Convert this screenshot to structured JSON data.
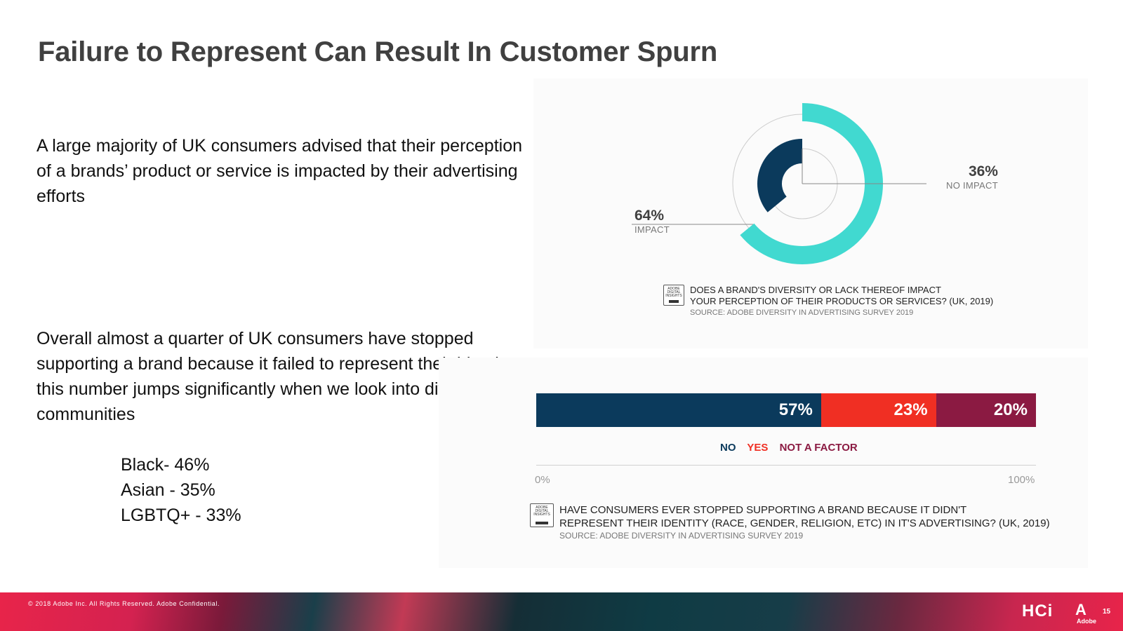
{
  "slide": {
    "title": "Failure to Represent Can Result In Customer Spurn",
    "paragraph1": "A large majority of UK consumers advised that their perception of a brands’ product or service is impacted by their advertising efforts",
    "paragraph2": "Overall almost a quarter of UK consumers have stopped supporting a brand because it failed to represent their identity, this number jumps significantly when we look into different communities",
    "community_stats": [
      "Black- 46%",
      "Asian - 35%",
      "LGBTQ+ - 33%"
    ]
  },
  "donut_source": {
    "badge": [
      "ADOBE",
      "DIGITAL",
      "INSIGHTS",
      "2019"
    ],
    "question_lines": [
      "DOES A BRAND'S DIVERSITY OR LACK THEREOF IMPACT",
      "YOUR PERCEPTION OF THEIR PRODUCTS OR SERVICES? (UK, 2019)"
    ],
    "source": "SOURCE: ADOBE DIVERSITY IN ADVERTISING SURVEY 2019"
  },
  "bar_source": {
    "badge": [
      "ADOBE",
      "DIGITAL",
      "INSIGHTS",
      "2019"
    ],
    "question_lines": [
      "HAVE CONSUMERS EVER STOPPED SUPPORTING A BRAND BECAUSE IT DIDN'T",
      "REPRESENT THEIR IDENTITY (RACE, GENDER, RELIGION, ETC) IN IT'S ADVERTISING? (UK, 2019)"
    ],
    "source": "SOURCE: ADOBE DIVERSITY IN ADVERTISING SURVEY 2019"
  },
  "chart_data": [
    {
      "type": "pie",
      "labels": [
        "IMPACT",
        "NO IMPACT"
      ],
      "values": [
        64,
        36
      ],
      "value_labels": [
        "64%",
        "36%"
      ],
      "colors": [
        "#41d9d0",
        "#0b3a5c"
      ]
    },
    {
      "type": "bar",
      "stacked": true,
      "orientation": "horizontal",
      "series": [
        {
          "name": "NO",
          "value": 57,
          "label": "57%",
          "color": "#0b3a5c"
        },
        {
          "name": "YES",
          "value": 23,
          "label": "23%",
          "color": "#f02f23"
        },
        {
          "name": "NOT A FACTOR",
          "value": 20,
          "label": "20%",
          "color": "#8b1a42"
        }
      ],
      "x_ticks": [
        "0%",
        "100%"
      ],
      "xlim": [
        0,
        100
      ]
    }
  ],
  "footer": {
    "copyright": "© 2018 Adobe Inc. All Rights Reserved. Adobe Confidential.",
    "hci_logo": "HCi",
    "adobe_logo": "Adobe",
    "page_number": "15"
  }
}
